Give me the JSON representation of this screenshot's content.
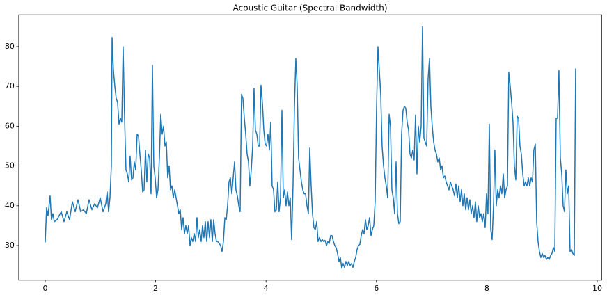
{
  "chart_data": {
    "type": "line",
    "title": "Acoustic Guitar (Spectral Bandwidth)",
    "color": "#1f77b4",
    "xlim": [
      -0.48,
      10.08
    ],
    "ylim": [
      21.3,
      88
    ],
    "xticks": [
      0,
      2,
      4,
      6,
      8,
      10
    ],
    "yticks": [
      30,
      40,
      50,
      60,
      70,
      80
    ],
    "grid": false,
    "x": [
      0,
      0.025,
      0.05,
      0.088,
      0.113,
      0.139,
      0.164,
      0.214,
      0.29,
      0.34,
      0.391,
      0.441,
      0.492,
      0.542,
      0.593,
      0.643,
      0.694,
      0.744,
      0.794,
      0.845,
      0.895,
      0.946,
      0.996,
      1.047,
      1.097,
      1.122,
      1.148,
      1.173,
      1.198,
      1.211,
      1.236,
      1.261,
      1.286,
      1.311,
      1.337,
      1.362,
      1.387,
      1.412,
      1.438,
      1.463,
      1.488,
      1.513,
      1.538,
      1.564,
      1.589,
      1.614,
      1.639,
      1.665,
      1.69,
      1.715,
      1.74,
      1.765,
      1.791,
      1.816,
      1.841,
      1.866,
      1.892,
      1.917,
      1.942,
      1.967,
      1.992,
      2.018,
      2.043,
      2.068,
      2.093,
      2.119,
      2.144,
      2.169,
      2.194,
      2.219,
      2.245,
      2.27,
      2.295,
      2.32,
      2.346,
      2.371,
      2.396,
      2.421,
      2.446,
      2.472,
      2.497,
      2.522,
      2.547,
      2.573,
      2.598,
      2.623,
      2.648,
      2.673,
      2.699,
      2.724,
      2.749,
      2.774,
      2.799,
      2.825,
      2.85,
      2.875,
      2.9,
      2.926,
      2.951,
      2.976,
      3.001,
      3.027,
      3.052,
      3.077,
      3.102,
      3.127,
      3.153,
      3.178,
      3.203,
      3.228,
      3.254,
      3.279,
      3.304,
      3.329,
      3.354,
      3.38,
      3.405,
      3.43,
      3.455,
      3.481,
      3.506,
      3.531,
      3.556,
      3.581,
      3.607,
      3.632,
      3.657,
      3.682,
      3.707,
      3.733,
      3.758,
      3.783,
      3.808,
      3.834,
      3.859,
      3.884,
      3.909,
      3.934,
      3.96,
      3.985,
      4.01,
      4.035,
      4.061,
      4.086,
      4.111,
      4.136,
      4.161,
      4.187,
      4.212,
      4.237,
      4.262,
      4.288,
      4.313,
      4.338,
      4.363,
      4.388,
      4.414,
      4.439,
      4.464,
      4.489,
      4.515,
      4.54,
      4.565,
      4.59,
      4.615,
      4.641,
      4.666,
      4.691,
      4.716,
      4.742,
      4.767,
      4.792,
      4.817,
      4.842,
      4.868,
      4.893,
      4.918,
      4.943,
      4.968,
      4.994,
      5.019,
      5.044,
      5.069,
      5.095,
      5.12,
      5.145,
      5.17,
      5.195,
      5.221,
      5.246,
      5.271,
      5.296,
      5.322,
      5.347,
      5.372,
      5.397,
      5.422,
      5.448,
      5.473,
      5.498,
      5.523,
      5.549,
      5.574,
      5.599,
      5.624,
      5.649,
      5.675,
      5.7,
      5.725,
      5.75,
      5.776,
      5.801,
      5.826,
      5.851,
      5.876,
      5.902,
      5.927,
      5.952,
      5.977,
      6.003,
      6.028,
      6.053,
      6.078,
      6.103,
      6.129,
      6.154,
      6.179,
      6.204,
      6.23,
      6.255,
      6.28,
      6.305,
      6.33,
      6.356,
      6.381,
      6.406,
      6.431,
      6.456,
      6.482,
      6.507,
      6.532,
      6.557,
      6.583,
      6.608,
      6.633,
      6.658,
      6.683,
      6.709,
      6.734,
      6.759,
      6.784,
      6.81,
      6.835,
      6.86,
      6.885,
      6.91,
      6.936,
      6.961,
      6.986,
      7.011,
      7.037,
      7.062,
      7.087,
      7.112,
      7.138,
      7.163,
      7.188,
      7.213,
      7.238,
      7.264,
      7.289,
      7.314,
      7.339,
      7.364,
      7.39,
      7.415,
      7.44,
      7.465,
      7.491,
      7.516,
      7.541,
      7.566,
      7.591,
      7.617,
      7.642,
      7.667,
      7.692,
      7.717,
      7.743,
      7.768,
      7.793,
      7.818,
      7.844,
      7.869,
      7.894,
      7.919,
      7.944,
      7.97,
      7.995,
      8.02,
      8.045,
      8.071,
      8.096,
      8.121,
      8.146,
      8.171,
      8.197,
      8.222,
      8.247,
      8.272,
      8.298,
      8.323,
      8.348,
      8.373,
      8.398,
      8.424,
      8.449,
      8.474,
      8.499,
      8.525,
      8.55,
      8.575,
      8.6,
      8.625,
      8.651,
      8.676,
      8.701,
      8.726,
      8.752,
      8.777,
      8.802,
      8.827,
      8.852,
      8.878,
      8.903,
      8.928,
      8.953,
      8.978,
      9.004,
      9.029,
      9.054,
      9.079,
      9.105,
      9.13,
      9.155,
      9.18,
      9.205,
      9.231,
      9.256,
      9.281,
      9.306,
      9.332,
      9.357,
      9.382,
      9.407,
      9.432,
      9.458,
      9.483,
      9.508,
      9.533,
      9.559,
      9.584,
      9.609
    ],
    "values": [
      30.8,
      39.5,
      37.5,
      42.5,
      36.5,
      38,
      36,
      36.5,
      38.5,
      36,
      38.5,
      36.5,
      41,
      38.5,
      41.5,
      38.5,
      39,
      38,
      41.5,
      39,
      40.5,
      39.5,
      42,
      38.5,
      40.5,
      43.5,
      38.5,
      42,
      50,
      82.3,
      74,
      70,
      67,
      66,
      60.5,
      62,
      61,
      80,
      62,
      49,
      48,
      46,
      52.5,
      46.5,
      47,
      51,
      49,
      58,
      57.5,
      53,
      49,
      43.5,
      44,
      54,
      46,
      53,
      52,
      43,
      75.3,
      50,
      47,
      42,
      44,
      52,
      63,
      58,
      60,
      55,
      56,
      47,
      50,
      44,
      45,
      42,
      44,
      42,
      40,
      38,
      39,
      34,
      37,
      33,
      35,
      33,
      35,
      30,
      32,
      31,
      33,
      31,
      37,
      32,
      34,
      31,
      35,
      32,
      36,
      31,
      36,
      32,
      36.5,
      31,
      36.5,
      33,
      31,
      31,
      30.5,
      30,
      28.5,
      31,
      37,
      36.5,
      40,
      46,
      47,
      43,
      47,
      51,
      44,
      42.5,
      40,
      38.5,
      68,
      67,
      62,
      58,
      53,
      51,
      45,
      49,
      55,
      69.5,
      59,
      58,
      55,
      55,
      70.3,
      66,
      59,
      55.5,
      55,
      58,
      54,
      61,
      45,
      44,
      38.5,
      39,
      46,
      38.5,
      42,
      64,
      42,
      44,
      40,
      43.5,
      40,
      42,
      31.5,
      45,
      65,
      77,
      70,
      52,
      49,
      46,
      44,
      43,
      43,
      40,
      38,
      54.5,
      45,
      38,
      34.5,
      34,
      36,
      31,
      32,
      31,
      31.5,
      31,
      31.3,
      30,
      31,
      30.5,
      32.5,
      32.5,
      31,
      30,
      29.5,
      28,
      26,
      27,
      24.3,
      25.5,
      24.5,
      26,
      25,
      26,
      25,
      25.5,
      24.5,
      26,
      27,
      29,
      30,
      30.3,
      32.5,
      34,
      33,
      36.5,
      34,
      35,
      37,
      32.5,
      34,
      35,
      41,
      65,
      80,
      74,
      68,
      55,
      50,
      47,
      45,
      42,
      63,
      60,
      44,
      42,
      38,
      51,
      38,
      35.5,
      36,
      58,
      64,
      65,
      64.5,
      61,
      59,
      53,
      52,
      54,
      51.5,
      62.8,
      48,
      60,
      56,
      60,
      85,
      57,
      56,
      55,
      72,
      77,
      65,
      60,
      56,
      54,
      53,
      51,
      52,
      49,
      50,
      47,
      47.5,
      46,
      45,
      44,
      46,
      45,
      44,
      42.5,
      45.5,
      42,
      45,
      41,
      44,
      40,
      43,
      39,
      42,
      39,
      41.5,
      38,
      40,
      37,
      41,
      36,
      40,
      37,
      38,
      36,
      38,
      34.5,
      43,
      38,
      60.5,
      34,
      31.5,
      40,
      54,
      40,
      44,
      42,
      45,
      43,
      48,
      42,
      44,
      45,
      73.5,
      70,
      66,
      61,
      50,
      46.5,
      62.5,
      62,
      55,
      53,
      48,
      45,
      46,
      45,
      47,
      45,
      47,
      46,
      54,
      55.5,
      36,
      31,
      28.5,
      27,
      28,
      27,
      27.5,
      26.5,
      27,
      26.5,
      27.5,
      28,
      29.5,
      28.5,
      62,
      62,
      74,
      52,
      48,
      40,
      38.5,
      49,
      43,
      45,
      28.5,
      29,
      28,
      27.5,
      74.5
    ]
  }
}
